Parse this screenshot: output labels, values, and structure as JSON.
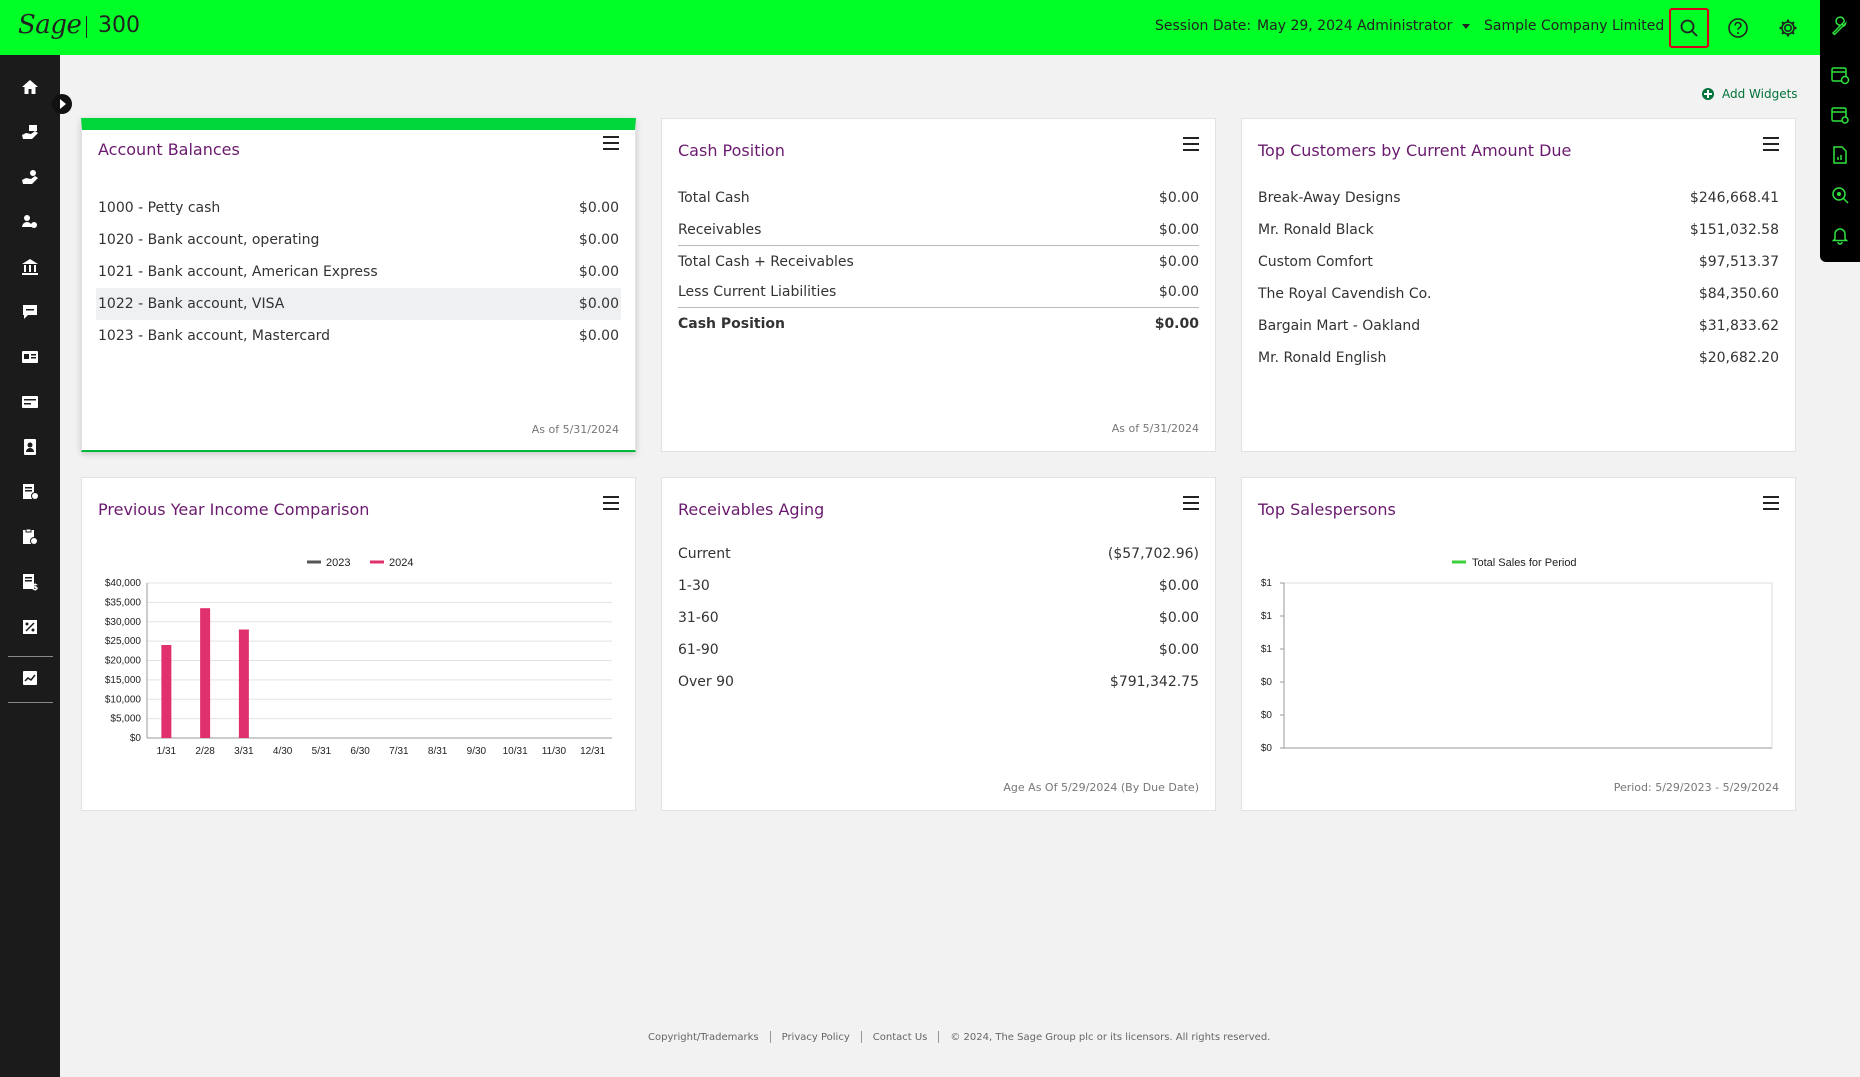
{
  "header": {
    "logo": "Sage",
    "product": "300",
    "session_label": "Session Date:",
    "session_date": "May 29, 2024",
    "user": "Administrator",
    "company": "Sample Company Limited"
  },
  "add_widgets_label": "Add Widgets",
  "account_balances": {
    "title": "Account Balances",
    "rows": [
      {
        "label": "1000 - Petty cash",
        "value": "$0.00"
      },
      {
        "label": "1020 - Bank account, operating",
        "value": "$0.00"
      },
      {
        "label": "1021 - Bank account, American Express",
        "value": "$0.00"
      },
      {
        "label": "1022 - Bank account, VISA",
        "value": "$0.00"
      },
      {
        "label": "1023 - Bank account, Mastercard",
        "value": "$0.00"
      }
    ],
    "footer": "As of 5/31/2024"
  },
  "cash_position": {
    "title": "Cash Position",
    "rows": [
      {
        "label": "Total Cash",
        "value": "$0.00"
      },
      {
        "label": "Receivables",
        "value": "$0.00"
      },
      {
        "label": "Total Cash + Receivables",
        "value": "$0.00"
      },
      {
        "label": "Less Current Liabilities",
        "value": "$0.00"
      },
      {
        "label": "Cash Position",
        "value": "$0.00"
      }
    ],
    "footer": "As of 5/31/2024"
  },
  "top_customers": {
    "title": "Top Customers by Current Amount Due",
    "rows": [
      {
        "label": "Break-Away Designs",
        "value": "$246,668.41"
      },
      {
        "label": "Mr. Ronald Black",
        "value": "$151,032.58"
      },
      {
        "label": "Custom Comfort",
        "value": "$97,513.37"
      },
      {
        "label": "The Royal Cavendish Co.",
        "value": "$84,350.60"
      },
      {
        "label": "Bargain Mart - Oakland",
        "value": "$31,833.62"
      },
      {
        "label": "Mr. Ronald English",
        "value": "$20,682.20"
      }
    ]
  },
  "income_comparison": {
    "title": "Previous Year Income Comparison"
  },
  "receivables_aging": {
    "title": "Receivables Aging",
    "rows": [
      {
        "label": "Current",
        "value": "($57,702.96)"
      },
      {
        "label": "1-30",
        "value": "$0.00"
      },
      {
        "label": "31-60",
        "value": "$0.00"
      },
      {
        "label": "61-90",
        "value": "$0.00"
      },
      {
        "label": "Over 90",
        "value": "$791,342.75"
      }
    ],
    "footer": "Age As Of 5/29/2024 (By Due Date)"
  },
  "top_salespersons": {
    "title": "Top Salespersons",
    "footer": "Period: 5/29/2023 - 5/29/2024"
  },
  "chart_data": [
    {
      "type": "bar",
      "categories": [
        "1/31",
        "2/28",
        "3/31",
        "4/30",
        "5/31",
        "6/30",
        "7/31",
        "8/31",
        "9/30",
        "10/31",
        "11/30",
        "12/31"
      ],
      "series": [
        {
          "name": "2023",
          "color": "#555555",
          "values": [
            0,
            0,
            0,
            0,
            0,
            0,
            0,
            0,
            0,
            0,
            0,
            0
          ]
        },
        {
          "name": "2024",
          "color": "#e0306e",
          "values": [
            24000,
            33500,
            28000,
            0,
            0,
            0,
            0,
            0,
            0,
            0,
            0,
            0
          ]
        }
      ],
      "yticks": [
        "$0",
        "$5,000",
        "$10,000",
        "$15,000",
        "$20,000",
        "$25,000",
        "$30,000",
        "$35,000",
        "$40,000"
      ],
      "ylim": [
        0,
        40000
      ],
      "legend_position": "top",
      "grid": true
    },
    {
      "type": "bar",
      "categories": [],
      "series": [
        {
          "name": "Total Sales for Period",
          "color": "#3ccf3c",
          "values": []
        }
      ],
      "yticks": [
        "$0",
        "$0",
        "$0",
        "$1",
        "$1",
        "$1"
      ],
      "legend_position": "top",
      "grid": false
    }
  ],
  "footer": {
    "links": [
      "Copyright/Trademarks",
      "Privacy Policy",
      "Contact Us"
    ],
    "copyright": "© 2024, The Sage Group plc or its licensors. All rights reserved."
  }
}
